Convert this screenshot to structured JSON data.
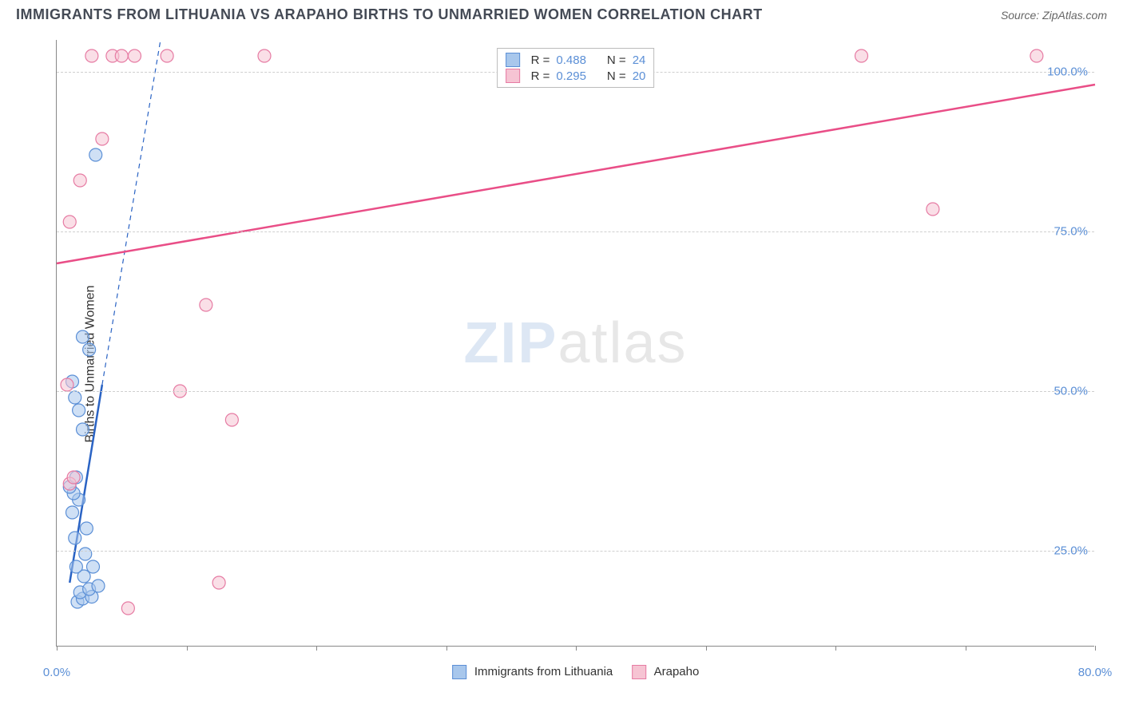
{
  "header": {
    "title": "IMMIGRANTS FROM LITHUANIA VS ARAPAHO BIRTHS TO UNMARRIED WOMEN CORRELATION CHART",
    "source": "Source: ZipAtlas.com"
  },
  "chart": {
    "type": "scatter",
    "ylabel": "Births to Unmarried Women",
    "background_color": "#ffffff",
    "grid_color": "#cfcfcf",
    "axis_color": "#888888",
    "label_color": "#5b8fd6",
    "label_fontsize": 15,
    "title_fontsize": 18,
    "xlim": [
      0,
      80
    ],
    "ylim": [
      10,
      105
    ],
    "x_ticks": [
      0,
      10,
      20,
      30,
      40,
      50,
      60,
      70,
      80
    ],
    "x_tick_labels": {
      "0": "0.0%",
      "80": "80.0%"
    },
    "y_ticks": [
      25,
      50,
      75,
      100
    ],
    "y_tick_labels": {
      "25": "25.0%",
      "50": "50.0%",
      "75": "75.0%",
      "100": "100.0%"
    },
    "marker_radius": 8,
    "marker_opacity": 0.55,
    "watermark": {
      "part1": "ZIP",
      "part2": "atlas"
    },
    "series": [
      {
        "name": "Immigrants from Lithuania",
        "color_fill": "#a8c7ec",
        "color_stroke": "#5b8fd6",
        "line_color": "#2a63c4",
        "line_width": 2.5,
        "line_dash_extension": true,
        "stats": {
          "R_label": "R =",
          "R": "0.488",
          "N_label": "N =",
          "N": "24"
        },
        "points": [
          {
            "x": 1.6,
            "y": 17.0
          },
          {
            "x": 2.0,
            "y": 17.5
          },
          {
            "x": 2.7,
            "y": 17.8
          },
          {
            "x": 1.8,
            "y": 18.5
          },
          {
            "x": 2.5,
            "y": 19.0
          },
          {
            "x": 3.2,
            "y": 19.5
          },
          {
            "x": 2.1,
            "y": 21.0
          },
          {
            "x": 1.5,
            "y": 22.5
          },
          {
            "x": 2.8,
            "y": 22.5
          },
          {
            "x": 2.2,
            "y": 24.5
          },
          {
            "x": 1.4,
            "y": 27.0
          },
          {
            "x": 2.3,
            "y": 28.5
          },
          {
            "x": 1.2,
            "y": 31.0
          },
          {
            "x": 1.7,
            "y": 33.0
          },
          {
            "x": 1.3,
            "y": 34.0
          },
          {
            "x": 1.0,
            "y": 35.0
          },
          {
            "x": 1.5,
            "y": 36.5
          },
          {
            "x": 2.0,
            "y": 44.0
          },
          {
            "x": 1.7,
            "y": 47.0
          },
          {
            "x": 1.4,
            "y": 49.0
          },
          {
            "x": 1.2,
            "y": 51.5
          },
          {
            "x": 2.5,
            "y": 56.5
          },
          {
            "x": 2.0,
            "y": 58.5
          },
          {
            "x": 3.0,
            "y": 87.0
          }
        ],
        "fit_line": {
          "x1": 1.0,
          "y1": 20.0,
          "x2": 3.5,
          "y2": 51.0
        },
        "fit_extension": {
          "x1": 3.5,
          "y1": 51.0,
          "x2": 8.0,
          "y2": 105.0
        }
      },
      {
        "name": "Arapaho",
        "color_fill": "#f6c4d3",
        "color_stroke": "#e67ba3",
        "line_color": "#e94e87",
        "line_width": 2.5,
        "line_dash_extension": false,
        "stats": {
          "R_label": "R =",
          "R": "0.295",
          "N_label": "N =",
          "N": "20"
        },
        "points": [
          {
            "x": 5.5,
            "y": 16.0
          },
          {
            "x": 12.5,
            "y": 20.0
          },
          {
            "x": 1.0,
            "y": 35.5
          },
          {
            "x": 1.3,
            "y": 36.5
          },
          {
            "x": 13.5,
            "y": 45.5
          },
          {
            "x": 9.5,
            "y": 50.0
          },
          {
            "x": 0.8,
            "y": 51.0
          },
          {
            "x": 11.5,
            "y": 63.5
          },
          {
            "x": 1.0,
            "y": 76.5
          },
          {
            "x": 1.8,
            "y": 83.0
          },
          {
            "x": 3.5,
            "y": 89.5
          },
          {
            "x": 2.7,
            "y": 102.5
          },
          {
            "x": 4.3,
            "y": 102.5
          },
          {
            "x": 5.0,
            "y": 102.5
          },
          {
            "x": 6.0,
            "y": 102.5
          },
          {
            "x": 8.5,
            "y": 102.5
          },
          {
            "x": 16.0,
            "y": 102.5
          },
          {
            "x": 62.0,
            "y": 102.5
          },
          {
            "x": 75.5,
            "y": 102.5
          },
          {
            "x": 67.5,
            "y": 78.5
          }
        ],
        "fit_line": {
          "x1": 0.0,
          "y1": 70.0,
          "x2": 80.0,
          "y2": 98.0
        }
      }
    ]
  }
}
